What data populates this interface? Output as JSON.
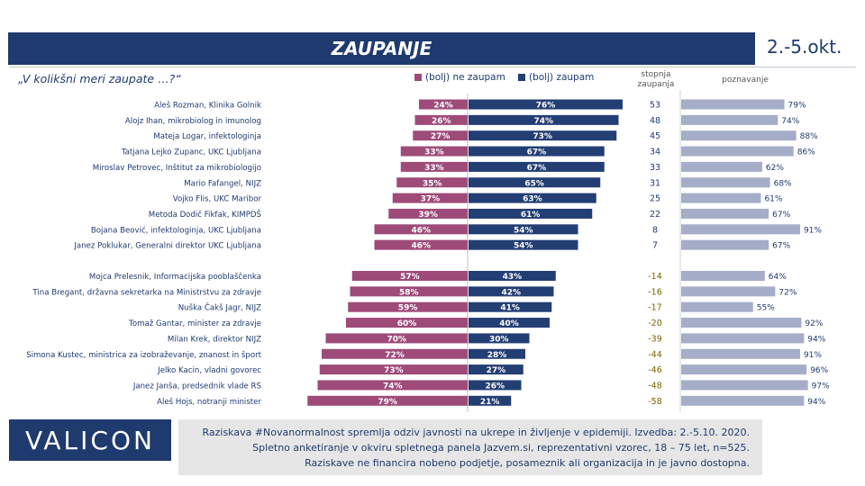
{
  "header": {
    "title": "ZAUPANJE",
    "date": "2.-5.okt."
  },
  "question": "„V kolikšni meri zaupate …?“",
  "legend": {
    "distrust": "(bolj) ne zaupam",
    "trust": "(bolj) zaupam"
  },
  "columns": {
    "index_line1": "stopnja",
    "index_line2": "zaupanja",
    "awareness": "poznavanje"
  },
  "colors": {
    "distrust": "#9e4b7a",
    "trust": "#233e73",
    "awareness": "#a5adc8",
    "index_positive": "#1f3a6e",
    "index_negative": "#7a6200"
  },
  "chart_data": {
    "type": "bar",
    "categories": [
      "Aleš Rozman, Klinika Golnik",
      "Alojz Ihan, mikrobiolog in imunolog",
      "Mateja Logar, infektologinja",
      "Tatjana Lejko Zupanc, UKC Ljubljana",
      "Miroslav Petrovec, Inštitut za mikrobiologijo",
      "Mario Fafangel, NIJZ",
      "Vojko Flis, UKC Maribor",
      "Metoda Dodič Fikfak, KIMPDŠ",
      "Bojana Beović, infektologinja, UKC Ljubljana",
      "Janez Poklukar, Generalni direktor UKC Ljubljana",
      "Mojca Prelesnik, Informacijska pooblaščenka",
      "Tina Bregant, državna sekretarka na Ministrstvu za zdravje",
      "Nuška Čakš Jagr, NIJZ",
      "Tomaž Gantar, minister za zdravje",
      "Milan Krek, direktor NIJZ",
      "Simona Kustec, ministrica za izobraževanje, znanost in šport",
      "Jelko Kacin, vladni govorec",
      "Janez Janša, predsednik vlade RS",
      "Aleš Hojs, notranji minister"
    ],
    "series": [
      {
        "name": "(bolj) ne zaupam",
        "values": [
          24,
          26,
          27,
          33,
          33,
          35,
          37,
          39,
          46,
          46,
          57,
          58,
          59,
          60,
          70,
          72,
          73,
          74,
          79
        ]
      },
      {
        "name": "(bolj) zaupam",
        "values": [
          76,
          74,
          73,
          67,
          67,
          65,
          63,
          61,
          54,
          54,
          43,
          42,
          41,
          40,
          30,
          28,
          27,
          26,
          21
        ]
      },
      {
        "name": "stopnja zaupanja",
        "values": [
          53,
          48,
          45,
          34,
          33,
          31,
          25,
          22,
          8,
          7,
          -14,
          -16,
          -17,
          -20,
          -39,
          -44,
          -46,
          -48,
          -58
        ]
      },
      {
        "name": "poznavanje",
        "values": [
          79,
          74,
          88,
          86,
          62,
          68,
          61,
          67,
          91,
          67,
          64,
          72,
          55,
          92,
          94,
          91,
          96,
          97,
          94
        ]
      }
    ],
    "group_break_after": 9,
    "unit": "%"
  },
  "footer": {
    "logo": "VALICON",
    "line1": "Raziskava #Novanormalnost spremlja odziv javnosti na ukrepe in življenje v epidemiji. Izvedba: 2.-5.10. 2020.",
    "line2": "Spletno anketiranje v okviru spletnega panela Jazvem.si, reprezentativni vzorec, 18 – 75 let, n=525.",
    "line3": "Raziskave ne financira nobeno podjetje, posameznik ali organizacija in je javno dostopna."
  }
}
